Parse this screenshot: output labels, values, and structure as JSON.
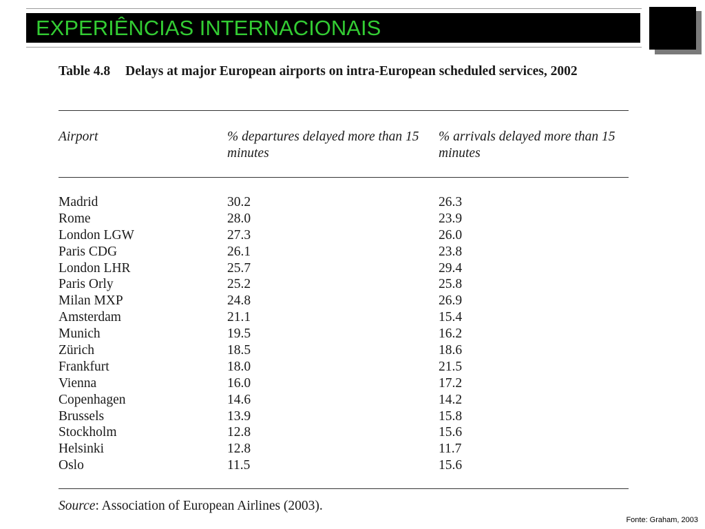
{
  "slide": {
    "title": "EXPERIÊNCIAS INTERNACIONAIS",
    "title_color": "#33cc33",
    "title_bar_color": "#000000",
    "footer_credit": "Fonte: Graham, 2003"
  },
  "table": {
    "caption_number": "Table 4.8",
    "caption_text": "Delays at major European airports on intra-European scheduled services, 2002",
    "headers": {
      "airport": "Airport",
      "departures": "% departures delayed more than 15 minutes",
      "arrivals": "% arrivals delayed more than 15 minutes"
    },
    "rows": [
      {
        "airport": "Madrid",
        "departures": "30.2",
        "arrivals": "26.3"
      },
      {
        "airport": "Rome",
        "departures": "28.0",
        "arrivals": "23.9"
      },
      {
        "airport": "London LGW",
        "departures": "27.3",
        "arrivals": "26.0"
      },
      {
        "airport": "Paris CDG",
        "departures": "26.1",
        "arrivals": "23.8"
      },
      {
        "airport": "London LHR",
        "departures": "25.7",
        "arrivals": "29.4"
      },
      {
        "airport": "Paris Orly",
        "departures": "25.2",
        "arrivals": "25.8"
      },
      {
        "airport": "Milan MXP",
        "departures": "24.8",
        "arrivals": "26.9"
      },
      {
        "airport": "Amsterdam",
        "departures": "21.1",
        "arrivals": "15.4"
      },
      {
        "airport": "Munich",
        "departures": "19.5",
        "arrivals": "16.2"
      },
      {
        "airport": "Zürich",
        "departures": "18.5",
        "arrivals": "18.6"
      },
      {
        "airport": "Frankfurt",
        "departures": "18.0",
        "arrivals": "21.5"
      },
      {
        "airport": "Vienna",
        "departures": "16.0",
        "arrivals": "17.2"
      },
      {
        "airport": "Copenhagen",
        "departures": "14.6",
        "arrivals": "14.2"
      },
      {
        "airport": "Brussels",
        "departures": "13.9",
        "arrivals": "15.8"
      },
      {
        "airport": "Stockholm",
        "departures": "12.8",
        "arrivals": "15.6"
      },
      {
        "airport": "Helsinki",
        "departures": "12.8",
        "arrivals": "11.7"
      },
      {
        "airport": "Oslo",
        "departures": "11.5",
        "arrivals": "15.6"
      }
    ],
    "source_label": "Source",
    "source_text": ": Association of European Airlines (2003)."
  }
}
